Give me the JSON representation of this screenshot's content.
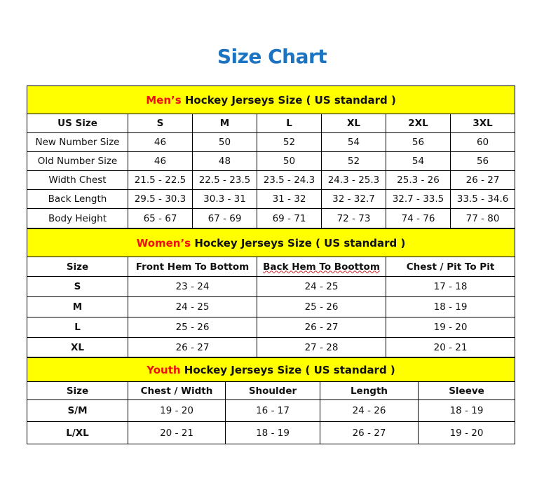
{
  "title": "Size Chart",
  "colors": {
    "title": "#1b73c1",
    "header_bg": "#ffff00",
    "highlight": "#ee1111"
  },
  "men": {
    "heading_highlight": "Men’s",
    "heading_rest": " Hockey Jerseys Size ( US standard )",
    "columns": [
      "US Size",
      "S",
      "M",
      "L",
      "XL",
      "2XL",
      "3XL"
    ],
    "rows": [
      [
        "New Number Size",
        "46",
        "50",
        "52",
        "54",
        "56",
        "60"
      ],
      [
        "Old Number Size",
        "46",
        "48",
        "50",
        "52",
        "54",
        "56"
      ],
      [
        "Width Chest",
        "21.5 - 22.5",
        "22.5 - 23.5",
        "23.5 - 24.3",
        "24.3 - 25.3",
        "25.3 - 26",
        "26 - 27"
      ],
      [
        "Back Length",
        "29.5 - 30.3",
        "30.3 - 31",
        "31 - 32",
        "32 - 32.7",
        "32.7 - 33.5",
        "33.5 - 34.6"
      ],
      [
        "Body Height",
        "65 - 67",
        "67 - 69",
        "69 - 71",
        "72 - 73",
        "74 - 76",
        "77 - 80"
      ]
    ]
  },
  "women": {
    "heading_highlight": "Women’s",
    "heading_rest": " Hockey Jerseys Size ( US standard )",
    "columns": [
      "Size",
      "Front Hem To Bottom",
      "Back Hem To Boottom",
      "Chest / Pit To Pit"
    ],
    "rows": [
      [
        "S",
        "23 - 24",
        "24 - 25",
        "17 - 18"
      ],
      [
        "M",
        "24 - 25",
        "25 - 26",
        "18 - 19"
      ],
      [
        "L",
        "25 - 26",
        "26 - 27",
        "19 - 20"
      ],
      [
        "XL",
        "26 - 27",
        "27 - 28",
        "20 - 21"
      ]
    ]
  },
  "youth": {
    "heading_highlight": "Youth",
    "heading_rest": " Hockey Jerseys Size ( US standard )",
    "columns": [
      "Size",
      "Chest / Width",
      "Shoulder",
      "Length",
      "Sleeve"
    ],
    "rows": [
      [
        "S/M",
        "19 - 20",
        "16 - 17",
        "24 - 26",
        "18 - 19"
      ],
      [
        "L/XL",
        "20 - 21",
        "18 - 19",
        "26 - 27",
        "19 - 20"
      ]
    ]
  }
}
